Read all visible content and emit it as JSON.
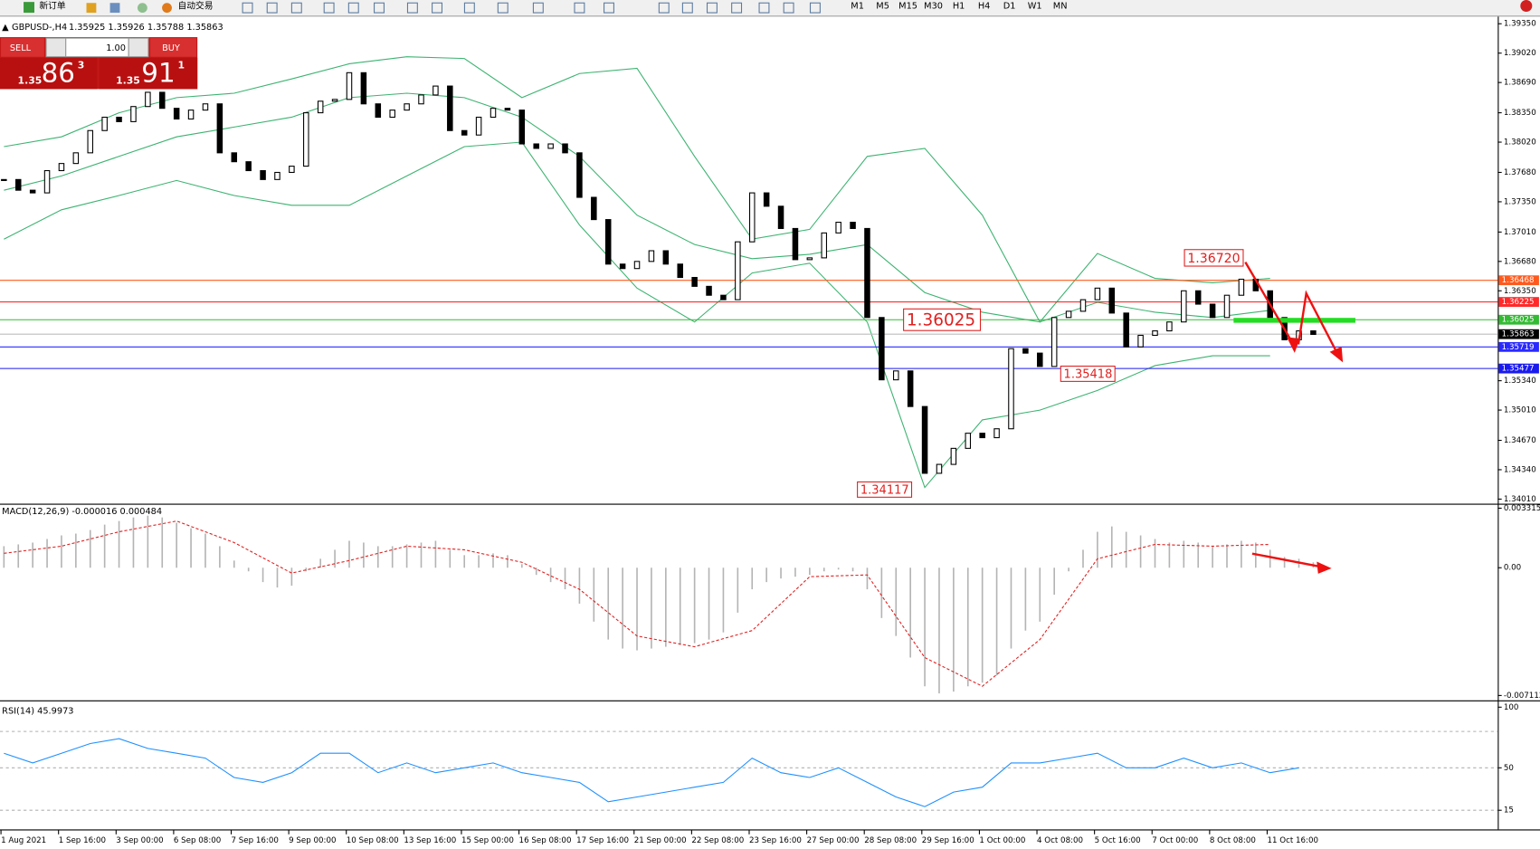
{
  "toolbar": {
    "new_order": "新订单",
    "auto_trading": "自动交易",
    "timeframes": [
      "M1",
      "M5",
      "M15",
      "M30",
      "H1",
      "H4",
      "D1",
      "W1",
      "MN"
    ]
  },
  "chart_header": {
    "symbol": "GBPUSD-,H4",
    "quote": "1.35925 1.35926 1.35788 1.35863"
  },
  "trade_panel": {
    "sell": "SELL",
    "buy": "BUY",
    "lots": "1.00",
    "bid_prefix": "1.35",
    "bid_big": "86",
    "bid_sup": "3",
    "ask_prefix": "1.35",
    "ask_big": "91",
    "ask_sup": "1"
  },
  "price_chart": {
    "type": "candlestick",
    "ylim": [
      1.3398,
      1.3943
    ],
    "yticks": [
      {
        "value": 1.3935,
        "label": "1.39350"
      },
      {
        "value": 1.3902,
        "label": "1.39020"
      },
      {
        "value": 1.3869,
        "label": "1.38690"
      },
      {
        "value": 1.3835,
        "label": "1.38350"
      },
      {
        "value": 1.3802,
        "label": "1.38020"
      },
      {
        "value": 1.3768,
        "label": "1.37680"
      },
      {
        "value": 1.3735,
        "label": "1.37350"
      },
      {
        "value": 1.3701,
        "label": "1.37010"
      },
      {
        "value": 1.3668,
        "label": "1.36680"
      },
      {
        "value": 1.3635,
        "label": "1.36350"
      },
      {
        "value": 1.3534,
        "label": "1.35340"
      },
      {
        "value": 1.3501,
        "label": "1.35010"
      },
      {
        "value": 1.3467,
        "label": "1.34670"
      },
      {
        "value": 1.3434,
        "label": "1.34340"
      },
      {
        "value": 1.3401,
        "label": "1.34010"
      }
    ],
    "closes": [
      1.376,
      1.3748,
      1.3745,
      1.377,
      1.3778,
      1.379,
      1.3815,
      1.383,
      1.3825,
      1.3842,
      1.3858,
      1.384,
      1.3828,
      1.3838,
      1.3845,
      1.379,
      1.378,
      1.377,
      1.376,
      1.3768,
      1.3775,
      1.3835,
      1.3848,
      1.385,
      1.388,
      1.3845,
      1.383,
      1.3838,
      1.3845,
      1.3855,
      1.3865,
      1.3815,
      1.381,
      1.383,
      1.384,
      1.3838,
      1.38,
      1.3795,
      1.38,
      1.379,
      1.374,
      1.3715,
      1.3665,
      1.366,
      1.3668,
      1.368,
      1.3665,
      1.365,
      1.364,
      1.363,
      1.3625,
      1.369,
      1.3745,
      1.373,
      1.3705,
      1.367,
      1.3672,
      1.37,
      1.3712,
      1.3705,
      1.3605,
      1.3535,
      1.3545,
      1.3505,
      1.343,
      1.344,
      1.3458,
      1.3475,
      1.347,
      1.348,
      1.357,
      1.3565,
      1.355,
      1.3605,
      1.3612,
      1.3625,
      1.3638,
      1.361,
      1.3572,
      1.3585,
      1.359,
      1.36,
      1.3635,
      1.362,
      1.3605,
      1.363,
      1.3648,
      1.3635,
      1.3605,
      1.358,
      1.359,
      1.3586
    ],
    "bollinger": {
      "upper": [
        1.3797,
        1.3808,
        1.3835,
        1.3852,
        1.3857,
        1.3873,
        1.389,
        1.3898,
        1.3896,
        1.3852,
        1.3879,
        1.3885,
        1.3786,
        1.3693,
        1.3704,
        1.3786,
        1.3795,
        1.372,
        1.36,
        1.3677,
        1.3649,
        1.3644,
        1.3649
      ],
      "middle": [
        1.3748,
        1.3764,
        1.3786,
        1.3808,
        1.3819,
        1.383,
        1.3852,
        1.3857,
        1.3852,
        1.383,
        1.3786,
        1.372,
        1.3687,
        1.3671,
        1.3676,
        1.3687,
        1.3633,
        1.3611,
        1.36,
        1.3622,
        1.3611,
        1.3605,
        1.3613
      ],
      "lower": [
        1.3693,
        1.3726,
        1.3742,
        1.3759,
        1.3742,
        1.3731,
        1.3731,
        1.3764,
        1.3797,
        1.3802,
        1.3709,
        1.3638,
        1.36,
        1.3655,
        1.3666,
        1.36,
        1.3414,
        1.349,
        1.3501,
        1.3523,
        1.3551,
        1.3562,
        1.3562
      ]
    },
    "levels": [
      {
        "value": 1.36468,
        "color": "#ff5a1e"
      },
      {
        "value": 1.36225,
        "color": "#ff2a2a"
      },
      {
        "value": 1.36025,
        "color": "#33bb33"
      },
      {
        "value": 1.35863,
        "color": "#000000"
      },
      {
        "value": 1.35719,
        "color": "#2a2aff"
      },
      {
        "value": 1.35477,
        "color": "#1a1aee"
      }
    ],
    "annotations": [
      {
        "value": 1.3672,
        "label": "1.36720"
      },
      {
        "value": 1.36025,
        "label": "1.36025"
      },
      {
        "value": 1.35418,
        "label": "1.35418"
      },
      {
        "value": 1.34117,
        "label": "1.34117"
      }
    ]
  },
  "macd": {
    "label": "MACD(12,26,9) -0.000016 0.000484",
    "ylim": [
      -0.0073,
      0.0034
    ],
    "yticks": [
      0.003315,
      {
        "value": 0,
        "label": "0.00"
      },
      -0.007112
    ],
    "histogram": [
      0.0012,
      0.0013,
      0.0014,
      0.0016,
      0.0018,
      0.0019,
      0.0021,
      0.0024,
      0.0026,
      0.0028,
      0.0029,
      0.0028,
      0.0025,
      0.0022,
      0.0019,
      0.0012,
      0.0004,
      -0.0002,
      -0.0008,
      -0.0011,
      -0.001,
      -0.0002,
      0.0005,
      0.001,
      0.0015,
      0.0014,
      0.0012,
      0.0012,
      0.0013,
      0.0014,
      0.0015,
      0.001,
      0.0007,
      0.0007,
      0.0008,
      0.0007,
      0.0002,
      -0.0004,
      -0.0008,
      -0.0012,
      -0.002,
      -0.003,
      -0.004,
      -0.0045,
      -0.0046,
      -0.0045,
      -0.0044,
      -0.0043,
      -0.0042,
      -0.004,
      -0.0036,
      -0.0025,
      -0.0012,
      -0.0008,
      -0.0006,
      -0.0005,
      -0.0004,
      -0.0002,
      -0.0001,
      -0.0002,
      -0.0012,
      -0.0028,
      -0.0038,
      -0.005,
      -0.0066,
      -0.007,
      -0.0069,
      -0.0066,
      -0.0064,
      -0.006,
      -0.0045,
      -0.0035,
      -0.003,
      -0.0015,
      -0.0002,
      0.001,
      0.002,
      0.0023,
      0.002,
      0.0018,
      0.0016,
      0.0014,
      0.0015,
      0.0014,
      0.0012,
      0.0013,
      0.0015,
      0.0014,
      0.001,
      0.0006,
      0.0005,
      0.0003
    ],
    "signal": [
      0.0008,
      0.0012,
      0.002,
      0.0026,
      0.0014,
      -0.0003,
      0.0004,
      0.0012,
      0.001,
      0.0003,
      -0.0012,
      -0.0038,
      -0.0044,
      -0.0035,
      -0.0005,
      -0.0004,
      -0.005,
      -0.0066,
      -0.004,
      0.0005,
      0.0013,
      0.0012,
      0.0013
    ]
  },
  "rsi": {
    "label": "RSI(14) 45.9973",
    "ylim": [
      0,
      100
    ],
    "yticks": [
      100,
      50,
      15
    ],
    "levels": [
      80,
      50,
      15
    ],
    "values": [
      62,
      54,
      62,
      70,
      74,
      66,
      62,
      58,
      42,
      38,
      46,
      62,
      62,
      46,
      54,
      46,
      50,
      54,
      46,
      42,
      38,
      22,
      26,
      30,
      34,
      38,
      58,
      46,
      42,
      50,
      38,
      26,
      18,
      30,
      34,
      54,
      54,
      58,
      62,
      50,
      50,
      58,
      50,
      54,
      46,
      50
    ]
  },
  "time_axis": [
    "1 Aug 2021",
    "1 Sep 16:00",
    "3 Sep 00:00",
    "6 Sep 08:00",
    "7 Sep 16:00",
    "9 Sep 00:00",
    "10 Sep 08:00",
    "13 Sep 16:00",
    "15 Sep 00:00",
    "16 Sep 08:00",
    "17 Sep 16:00",
    "21 Sep 00:00",
    "22 Sep 08:00",
    "23 Sep 16:00",
    "27 Sep 00:00",
    "28 Sep 08:00",
    "29 Sep 16:00",
    "1 Oct 00:00",
    "4 Oct 08:00",
    "5 Oct 16:00",
    "7 Oct 00:00",
    "8 Oct 08:00",
    "11 Oct 16:00"
  ]
}
